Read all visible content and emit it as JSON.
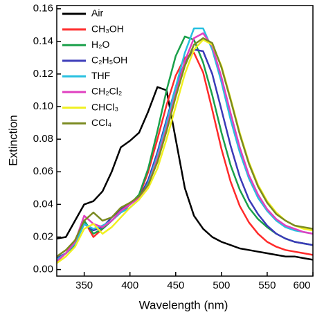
{
  "chart_data": {
    "type": "line",
    "xlabel": "Wavelength (nm)",
    "ylabel": "Extinction",
    "x": [
      320,
      330,
      340,
      350,
      360,
      370,
      380,
      390,
      400,
      410,
      420,
      430,
      440,
      450,
      460,
      470,
      480,
      490,
      500,
      510,
      520,
      530,
      540,
      550,
      560,
      570,
      580,
      590,
      600
    ],
    "xlim": [
      320,
      600
    ],
    "xticks": [
      350,
      400,
      450,
      500,
      550,
      600
    ],
    "ylim": [
      -0.004,
      0.162
    ],
    "yticks": [
      {
        "value": 0,
        "label": "0.00"
      },
      {
        "value": 0.02,
        "label": "0.02"
      },
      {
        "value": 0.04,
        "label": "0.04"
      },
      {
        "value": 0.06,
        "label": "0.06"
      },
      {
        "value": 0.08,
        "label": "0.08"
      },
      {
        "value": 0.1,
        "label": "0.10"
      },
      {
        "value": 0.12,
        "label": "0.12"
      },
      {
        "value": 0.14,
        "label": "0.14"
      },
      {
        "value": 0.16,
        "label": "0.16"
      }
    ],
    "legend": "upper left",
    "series": [
      {
        "name": "Air",
        "color": "#000000",
        "values": [
          0.019,
          0.02,
          0.03,
          0.04,
          0.042,
          0.048,
          0.06,
          0.075,
          0.079,
          0.084,
          0.097,
          0.112,
          0.11,
          0.08,
          0.05,
          0.033,
          0.025,
          0.02,
          0.017,
          0.015,
          0.013,
          0.012,
          0.011,
          0.01,
          0.009,
          0.008,
          0.008,
          0.007,
          0.006
        ]
      },
      {
        "name": "CH₃OH",
        "color": "#ff2a2a",
        "values": [
          0.005,
          0.01,
          0.018,
          0.03,
          0.02,
          0.025,
          0.03,
          0.035,
          0.04,
          0.045,
          0.06,
          0.08,
          0.101,
          0.119,
          0.13,
          0.133,
          0.121,
          0.098,
          0.074,
          0.054,
          0.039,
          0.029,
          0.022,
          0.017,
          0.014,
          0.012,
          0.011,
          0.01,
          0.009
        ]
      },
      {
        "name": "H₂O",
        "color": "#1aa04a",
        "values": [
          0.006,
          0.01,
          0.015,
          0.03,
          0.022,
          0.025,
          0.03,
          0.036,
          0.04,
          0.046,
          0.062,
          0.085,
          0.11,
          0.131,
          0.143,
          0.141,
          0.127,
          0.107,
          0.084,
          0.064,
          0.049,
          0.038,
          0.031,
          0.026,
          0.022,
          0.019,
          0.017,
          0.016,
          0.015
        ]
      },
      {
        "name": "C₂H₅OH",
        "color": "#3a3ab8",
        "values": [
          0.007,
          0.01,
          0.016,
          0.028,
          0.024,
          0.026,
          0.032,
          0.037,
          0.04,
          0.044,
          0.055,
          0.072,
          0.092,
          0.112,
          0.127,
          0.135,
          0.134,
          0.12,
          0.098,
          0.076,
          0.057,
          0.043,
          0.034,
          0.027,
          0.022,
          0.019,
          0.017,
          0.016,
          0.015
        ]
      },
      {
        "name": "THF",
        "color": "#26c0e0",
        "values": [
          0.006,
          0.01,
          0.016,
          0.028,
          0.025,
          0.027,
          0.03,
          0.035,
          0.038,
          0.043,
          0.053,
          0.07,
          0.09,
          0.112,
          0.133,
          0.148,
          0.148,
          0.135,
          0.115,
          0.092,
          0.072,
          0.056,
          0.044,
          0.036,
          0.03,
          0.026,
          0.024,
          0.023,
          0.022
        ]
      },
      {
        "name": "CH₂Cl₂",
        "color": "#e040c0",
        "values": [
          0.005,
          0.01,
          0.017,
          0.033,
          0.028,
          0.026,
          0.03,
          0.036,
          0.04,
          0.044,
          0.052,
          0.068,
          0.087,
          0.108,
          0.128,
          0.142,
          0.145,
          0.137,
          0.118,
          0.096,
          0.075,
          0.058,
          0.046,
          0.037,
          0.031,
          0.027,
          0.025,
          0.023,
          0.022
        ]
      },
      {
        "name": "CHCl₃",
        "color": "#f0f020",
        "values": [
          0.004,
          0.008,
          0.014,
          0.025,
          0.028,
          0.022,
          0.026,
          0.032,
          0.038,
          0.043,
          0.05,
          0.062,
          0.08,
          0.1,
          0.12,
          0.135,
          0.141,
          0.138,
          0.125,
          0.105,
          0.084,
          0.066,
          0.052,
          0.042,
          0.035,
          0.03,
          0.027,
          0.025,
          0.024
        ]
      },
      {
        "name": "CCl₄",
        "color": "#7a8a20",
        "values": [
          0.008,
          0.012,
          0.018,
          0.03,
          0.035,
          0.03,
          0.032,
          0.038,
          0.041,
          0.045,
          0.052,
          0.066,
          0.085,
          0.106,
          0.125,
          0.138,
          0.142,
          0.139,
          0.124,
          0.104,
          0.083,
          0.065,
          0.051,
          0.041,
          0.034,
          0.03,
          0.027,
          0.026,
          0.025
        ]
      }
    ]
  }
}
